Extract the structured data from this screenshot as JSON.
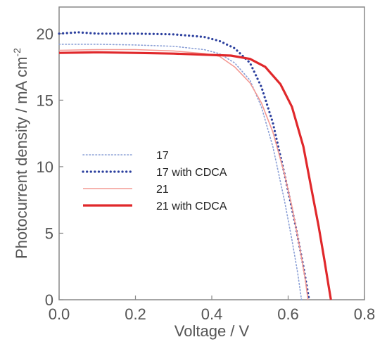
{
  "chart_data": {
    "type": "line",
    "xlabel": "Voltage / V",
    "ylabel": {
      "main": "Photocurrent density / mA cm",
      "sup": "-2"
    },
    "xlim": [
      0,
      0.8
    ],
    "ylim": [
      0,
      22
    ],
    "xticks": [
      0.0,
      0.2,
      0.4,
      0.6,
      0.8
    ],
    "xtick_labels": [
      "0.0",
      "0.2",
      "0.4",
      "0.6",
      "0.8"
    ],
    "yticks": [
      0,
      5,
      10,
      15,
      20
    ],
    "ytick_labels": [
      "0",
      "5",
      "10",
      "15",
      "20"
    ],
    "grid": false,
    "legend_position": "left-middle",
    "series": [
      {
        "name": "17",
        "color": "#8a9fd6",
        "style": "dotted-thin",
        "points": [
          [
            0.0,
            19.2
          ],
          [
            0.1,
            19.2
          ],
          [
            0.2,
            19.15
          ],
          [
            0.3,
            19.05
          ],
          [
            0.38,
            18.8
          ],
          [
            0.42,
            18.5
          ],
          [
            0.46,
            17.8
          ],
          [
            0.5,
            16.5
          ],
          [
            0.53,
            14.5
          ],
          [
            0.56,
            11.5
          ],
          [
            0.59,
            7.5
          ],
          [
            0.61,
            4.5
          ],
          [
            0.625,
            2.0
          ],
          [
            0.635,
            0.0
          ]
        ]
      },
      {
        "name": "17 with CDCA",
        "color": "#2b3f9e",
        "style": "dotted-thick",
        "points": [
          [
            0.0,
            20.0
          ],
          [
            0.05,
            20.1
          ],
          [
            0.1,
            20.0
          ],
          [
            0.2,
            20.0
          ],
          [
            0.3,
            19.95
          ],
          [
            0.38,
            19.75
          ],
          [
            0.42,
            19.45
          ],
          [
            0.46,
            18.9
          ],
          [
            0.5,
            17.8
          ],
          [
            0.53,
            16.0
          ],
          [
            0.56,
            13.3
          ],
          [
            0.59,
            9.5
          ],
          [
            0.62,
            5.5
          ],
          [
            0.64,
            2.5
          ],
          [
            0.655,
            0.0
          ]
        ]
      },
      {
        "name": "21",
        "color": "#f49a94",
        "style": "solid-thin",
        "points": [
          [
            0.0,
            18.75
          ],
          [
            0.1,
            18.8
          ],
          [
            0.2,
            18.8
          ],
          [
            0.3,
            18.7
          ],
          [
            0.38,
            18.5
          ],
          [
            0.42,
            18.3
          ],
          [
            0.46,
            17.5
          ],
          [
            0.5,
            16.3
          ],
          [
            0.53,
            14.8
          ],
          [
            0.56,
            12.6
          ],
          [
            0.59,
            9.5
          ],
          [
            0.61,
            7.0
          ],
          [
            0.63,
            4.0
          ],
          [
            0.645,
            1.5
          ],
          [
            0.652,
            0.0
          ]
        ]
      },
      {
        "name": "21 with CDCA",
        "color": "#e0282b",
        "style": "solid-thick",
        "points": [
          [
            0.0,
            18.55
          ],
          [
            0.1,
            18.6
          ],
          [
            0.2,
            18.55
          ],
          [
            0.3,
            18.5
          ],
          [
            0.4,
            18.4
          ],
          [
            0.45,
            18.35
          ],
          [
            0.5,
            18.1
          ],
          [
            0.54,
            17.5
          ],
          [
            0.58,
            16.2
          ],
          [
            0.61,
            14.5
          ],
          [
            0.64,
            11.5
          ],
          [
            0.66,
            8.5
          ],
          [
            0.68,
            5.5
          ],
          [
            0.695,
            3.0
          ],
          [
            0.705,
            1.2
          ],
          [
            0.712,
            0.0
          ]
        ]
      }
    ]
  }
}
